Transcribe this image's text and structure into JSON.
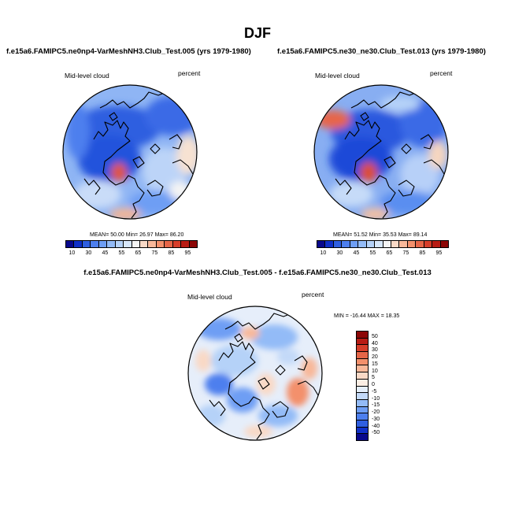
{
  "suptitle": "DJF",
  "chart_data": [
    {
      "type": "heatmap",
      "projection": "north-polar-stereographic",
      "title": "f.e15a6.FAMIPC5.ne0np4-VarMeshNH3.Club_Test.005 (yrs 1979-1980)",
      "left_label": "Mid-level cloud",
      "right_label": "percent",
      "stats": {
        "mean_label": "MEAN=",
        "mean": "50.00",
        "min_label": "Min=",
        "min": "26.97",
        "max_label": "Max=",
        "max": "86.20"
      },
      "colorbar_ticks": [
        "10",
        "30",
        "45",
        "55",
        "65",
        "75",
        "85",
        "95"
      ],
      "colorbar_colors": [
        "#08088c",
        "#1030c8",
        "#2f5fe0",
        "#4d7fee",
        "#6e9ef4",
        "#93bbf7",
        "#b5d2f8",
        "#d7e7fa",
        "#f4f4f4",
        "#f9d9c6",
        "#f8b89a",
        "#f3906c",
        "#e66648",
        "#d63e2a",
        "#b81c14",
        "#8c0606"
      ]
    },
    {
      "type": "heatmap",
      "projection": "north-polar-stereographic",
      "title": "f.e15a6.FAMIPC5.ne30_ne30.Club_Test.013 (yrs 1979-1980)",
      "left_label": "Mid-level cloud",
      "right_label": "percent",
      "stats": {
        "mean_label": "MEAN=",
        "mean": "51.52",
        "min_label": "Min=",
        "min": "35.53",
        "max_label": "Max=",
        "max": "89.14"
      },
      "colorbar_ticks": [
        "10",
        "30",
        "45",
        "55",
        "65",
        "75",
        "85",
        "95"
      ],
      "colorbar_colors": [
        "#08088c",
        "#1030c8",
        "#2f5fe0",
        "#4d7fee",
        "#6e9ef4",
        "#93bbf7",
        "#b5d2f8",
        "#d7e7fa",
        "#f4f4f4",
        "#f9d9c6",
        "#f8b89a",
        "#f3906c",
        "#e66648",
        "#d63e2a",
        "#b81c14",
        "#8c0606"
      ]
    },
    {
      "type": "heatmap",
      "projection": "north-polar-stereographic",
      "title": "f.e15a6.FAMIPC5.ne0np4-VarMeshNH3.Club_Test.005 - f.e15a6.FAMIPC5.ne30_ne30.Club_Test.013",
      "left_label": "Mid-level cloud",
      "right_label": "percent",
      "stats_text": "MIN = -16.44  MAX = 18.35",
      "colorbar_ticks": [
        "50",
        "40",
        "30",
        "20",
        "15",
        "10",
        "5",
        "0",
        "-5",
        "-10",
        "-15",
        "-20",
        "-30",
        "-40",
        "-50"
      ],
      "colorbar_colors": [
        "#8c0606",
        "#b81c14",
        "#d63e2a",
        "#e66648",
        "#f3906c",
        "#f8b89a",
        "#f9d9c6",
        "#fbeee4",
        "#e4eefa",
        "#c3d9f8",
        "#93bbf7",
        "#6e9ef4",
        "#4d7fee",
        "#2f5fe0",
        "#1030c8",
        "#08088c"
      ]
    }
  ]
}
